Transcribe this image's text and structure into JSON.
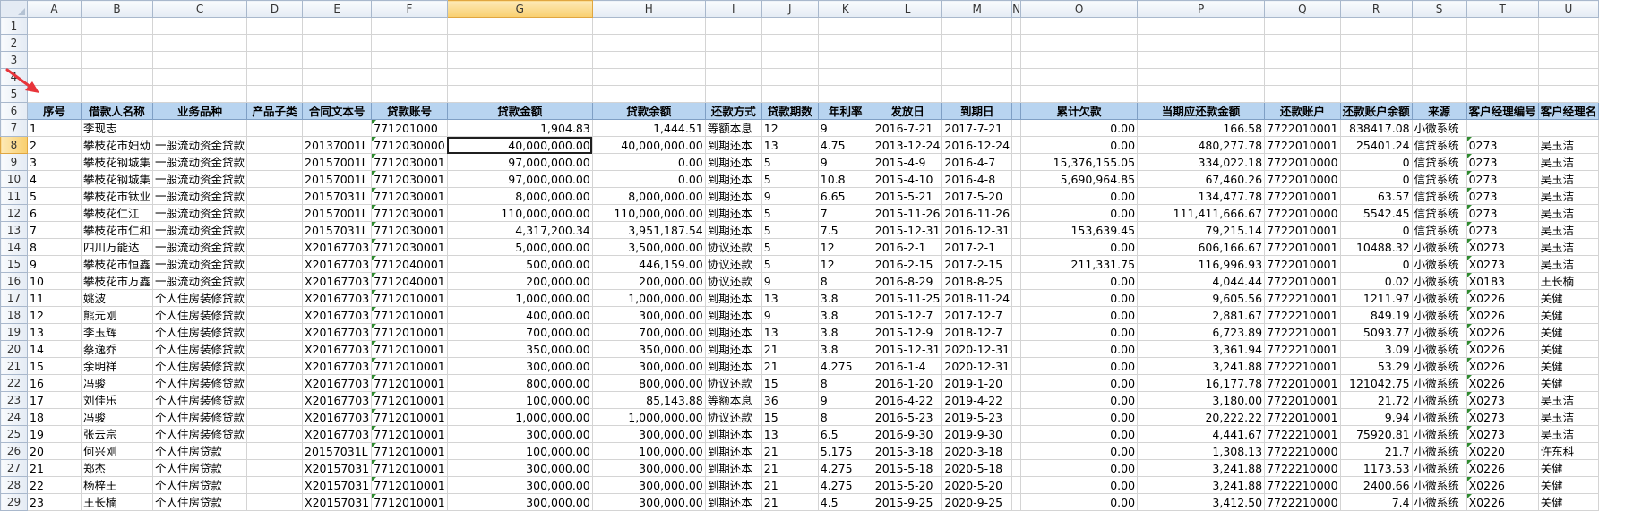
{
  "columns": [
    "A",
    "B",
    "C",
    "D",
    "E",
    "F",
    "G",
    "H",
    "I",
    "J",
    "K",
    "L",
    "M",
    "N",
    "O",
    "P",
    "Q",
    "R",
    "S",
    "T",
    "U"
  ],
  "selected_column": "G",
  "selected_row": "8",
  "blank_rows": [
    "1",
    "2",
    "3",
    "4",
    "5"
  ],
  "header_row": {
    "row": "6",
    "cells": [
      "序号",
      "借款人名称",
      "业务品种",
      "产品子类",
      "合同文本号",
      "贷款账号",
      "贷款金额",
      "贷款余额",
      "还款方式",
      "贷款期数",
      "年利率",
      "发放日",
      "到期日",
      "",
      "累计欠款",
      "当期应还款金额",
      "还款账户",
      "还款账户余额",
      "来源",
      "客户经理编号",
      "客户经理名"
    ]
  },
  "records": [
    {
      "row": "7",
      "cells": [
        "1",
        "李现志",
        "",
        "",
        "",
        "771201000",
        "1,904.83",
        "1,444.51",
        "等额本息",
        "12",
        "9",
        "2016-7-21",
        "2017-7-21",
        "",
        "0.00",
        "166.58",
        "7722010001",
        "838417.08",
        "小微系统",
        "",
        ""
      ]
    },
    {
      "row": "8",
      "cells": [
        "2",
        "攀枝花市妇幼",
        "一般流动资金贷款",
        "",
        "20137001L",
        "7712030000",
        "40,000,000.00",
        "40,000,000.00",
        "到期还本",
        "13",
        "4.75",
        "2013-12-24",
        "2016-12-24",
        "",
        "0.00",
        "480,277.78",
        "7722010001",
        "25401.24",
        "信贷系统",
        "0273",
        "吴玉洁"
      ]
    },
    {
      "row": "9",
      "cells": [
        "3",
        "攀枝花钢城集",
        "一般流动资金贷款",
        "",
        "20157001L",
        "7712030001",
        "97,000,000.00",
        "0.00",
        "到期还本",
        "5",
        "9",
        "2015-4-9",
        "2016-4-7",
        "",
        "15,376,155.05",
        "334,022.18",
        "7722010000",
        "0",
        "信贷系统",
        "0273",
        "吴玉洁"
      ]
    },
    {
      "row": "10",
      "cells": [
        "4",
        "攀枝花钢城集",
        "一般流动资金贷款",
        "",
        "20157001L",
        "7712030001",
        "97,000,000.00",
        "0.00",
        "到期还本",
        "5",
        "10.8",
        "2015-4-10",
        "2016-4-8",
        "",
        "5,690,964.85",
        "67,460.26",
        "7722010000",
        "0",
        "信贷系统",
        "0273",
        "吴玉洁"
      ]
    },
    {
      "row": "11",
      "cells": [
        "5",
        "攀枝花市钛业",
        "一般流动资金贷款",
        "",
        "20157031L",
        "7712030001",
        "8,000,000.00",
        "8,000,000.00",
        "到期还本",
        "9",
        "6.65",
        "2015-5-21",
        "2017-5-20",
        "",
        "0.00",
        "134,477.78",
        "7722010001",
        "63.57",
        "信贷系统",
        "0273",
        "吴玉洁"
      ]
    },
    {
      "row": "12",
      "cells": [
        "6",
        "攀枝花仁江",
        "一般流动资金贷款",
        "",
        "20157001L",
        "7712030001",
        "110,000,000.00",
        "110,000,000.00",
        "到期还本",
        "5",
        "7",
        "2015-11-26",
        "2016-11-26",
        "",
        "0.00",
        "111,411,666.67",
        "7722010000",
        "5542.45",
        "信贷系统",
        "0273",
        "吴玉洁"
      ]
    },
    {
      "row": "13",
      "cells": [
        "7",
        "攀枝花市仁和",
        "一般流动资金贷款",
        "",
        "20157031L",
        "7712030001",
        "4,317,200.34",
        "3,951,187.54",
        "到期还本",
        "5",
        "7.5",
        "2015-12-31",
        "2016-12-31",
        "",
        "153,639.45",
        "79,215.14",
        "7722010001",
        "0",
        "信贷系统",
        "0273",
        "吴玉洁"
      ]
    },
    {
      "row": "14",
      "cells": [
        "8",
        "四川万能达",
        "一般流动资金贷款",
        "",
        "X20167703",
        "7712030001",
        "5,000,000.00",
        "3,500,000.00",
        "协议还款",
        "5",
        "12",
        "2016-2-1",
        "2017-2-1",
        "",
        "0.00",
        "606,166.67",
        "7722010001",
        "10488.32",
        "小微系统",
        "X0273",
        "吴玉洁"
      ]
    },
    {
      "row": "15",
      "cells": [
        "9",
        "攀枝花市恒鑫",
        "一般流动资金贷款",
        "",
        "X20167703",
        "7712040001",
        "500,000.00",
        "446,159.00",
        "协议还款",
        "5",
        "12",
        "2016-2-15",
        "2017-2-15",
        "",
        "211,331.75",
        "116,996.93",
        "7722010001",
        "0",
        "小微系统",
        "X0273",
        "吴玉洁"
      ]
    },
    {
      "row": "16",
      "cells": [
        "10",
        "攀枝花市万鑫",
        "一般流动资金贷款",
        "",
        "X20167703",
        "7712040001",
        "200,000.00",
        "200,000.00",
        "协议还款",
        "9",
        "8",
        "2016-8-29",
        "2018-8-25",
        "",
        "0.00",
        "4,044.44",
        "7722010001",
        "0.02",
        "小微系统",
        "X0183",
        "王长楠"
      ]
    },
    {
      "row": "17",
      "cells": [
        "11",
        "姚波",
        "个人住房装修贷款",
        "",
        "X20167703",
        "7712010001",
        "1,000,000.00",
        "1,000,000.00",
        "到期还本",
        "13",
        "3.8",
        "2015-11-25",
        "2018-11-24",
        "",
        "0.00",
        "9,605.56",
        "7722210001",
        "1211.97",
        "小微系统",
        "X0226",
        "关健"
      ]
    },
    {
      "row": "18",
      "cells": [
        "12",
        "熊元刚",
        "个人住房装修贷款",
        "",
        "X20167703",
        "7712010001",
        "400,000.00",
        "300,000.00",
        "到期还本",
        "9",
        "3.8",
        "2015-12-7",
        "2017-12-7",
        "",
        "0.00",
        "2,881.67",
        "7722210001",
        "849.19",
        "小微系统",
        "X0226",
        "关健"
      ]
    },
    {
      "row": "19",
      "cells": [
        "13",
        "李玉辉",
        "个人住房装修贷款",
        "",
        "X20167703",
        "7712010001",
        "700,000.00",
        "700,000.00",
        "到期还本",
        "13",
        "3.8",
        "2015-12-9",
        "2018-12-7",
        "",
        "0.00",
        "6,723.89",
        "7722210001",
        "5093.77",
        "小微系统",
        "X0226",
        "关健"
      ]
    },
    {
      "row": "20",
      "cells": [
        "14",
        "蔡逸乔",
        "个人住房装修贷款",
        "",
        "X20167703",
        "7712010001",
        "350,000.00",
        "350,000.00",
        "到期还本",
        "21",
        "3.8",
        "2015-12-31",
        "2020-12-31",
        "",
        "0.00",
        "3,361.94",
        "7722210001",
        "3.09",
        "小微系统",
        "X0226",
        "关健"
      ]
    },
    {
      "row": "21",
      "cells": [
        "15",
        "余明祥",
        "个人住房装修贷款",
        "",
        "X20167703",
        "7712010001",
        "300,000.00",
        "300,000.00",
        "到期还本",
        "21",
        "4.275",
        "2016-1-4",
        "2020-12-31",
        "",
        "0.00",
        "3,241.88",
        "7722210001",
        "53.29",
        "小微系统",
        "X0226",
        "关健"
      ]
    },
    {
      "row": "22",
      "cells": [
        "16",
        "冯骏",
        "个人住房装修贷款",
        "",
        "X20167703",
        "7712010001",
        "800,000.00",
        "800,000.00",
        "协议还款",
        "15",
        "8",
        "2016-1-20",
        "2019-1-20",
        "",
        "0.00",
        "16,177.78",
        "7722010001",
        "121042.75",
        "小微系统",
        "X0226",
        "关健"
      ]
    },
    {
      "row": "23",
      "cells": [
        "17",
        "刘佳乐",
        "个人住房装修贷款",
        "",
        "X20167703",
        "7712010001",
        "100,000.00",
        "85,143.88",
        "等额本息",
        "36",
        "9",
        "2016-4-22",
        "2019-4-22",
        "",
        "0.00",
        "3,180.00",
        "7722010001",
        "21.72",
        "小微系统",
        "X0273",
        "吴玉洁"
      ]
    },
    {
      "row": "24",
      "cells": [
        "18",
        "冯骏",
        "个人住房装修贷款",
        "",
        "X20167703",
        "7712010001",
        "1,000,000.00",
        "1,000,000.00",
        "协议还款",
        "15",
        "8",
        "2016-5-23",
        "2019-5-23",
        "",
        "0.00",
        "20,222.22",
        "7722010001",
        "9.94",
        "小微系统",
        "X0273",
        "吴玉洁"
      ]
    },
    {
      "row": "25",
      "cells": [
        "19",
        "张云宗",
        "个人住房装修贷款",
        "",
        "X20167703",
        "7712010001",
        "300,000.00",
        "300,000.00",
        "到期还本",
        "13",
        "6.5",
        "2016-9-30",
        "2019-9-30",
        "",
        "0.00",
        "4,441.67",
        "7722210001",
        "75920.81",
        "小微系统",
        "X0273",
        "吴玉洁"
      ]
    },
    {
      "row": "26",
      "cells": [
        "20",
        "何兴刚",
        "个人住房贷款",
        "",
        "20157031L",
        "7712010001",
        "100,000.00",
        "100,000.00",
        "到期还本",
        "21",
        "5.175",
        "2015-3-18",
        "2020-3-18",
        "",
        "0.00",
        "1,308.13",
        "7722210000",
        "21.7",
        "小微系统",
        "X0220",
        "许东科"
      ]
    },
    {
      "row": "27",
      "cells": [
        "21",
        "郑杰",
        "个人住房贷款",
        "",
        "X20157031",
        "7712010001",
        "300,000.00",
        "300,000.00",
        "到期还本",
        "21",
        "4.275",
        "2015-5-18",
        "2020-5-18",
        "",
        "0.00",
        "3,241.88",
        "7722210000",
        "1173.53",
        "小微系统",
        "X0226",
        "关健"
      ]
    },
    {
      "row": "28",
      "cells": [
        "22",
        "杨梓王",
        "个人住房贷款",
        "",
        "X20157031",
        "7712010001",
        "300,000.00",
        "300,000.00",
        "到期还本",
        "21",
        "4.275",
        "2015-5-20",
        "2020-5-20",
        "",
        "0.00",
        "3,241.88",
        "7722210000",
        "2400.66",
        "小微系统",
        "X0226",
        "关健"
      ]
    },
    {
      "row": "29",
      "cells": [
        "23",
        "王长楠",
        "个人住房贷款",
        "",
        "X20157031",
        "7712010001",
        "300,000.00",
        "300,000.00",
        "到期还本",
        "21",
        "4.5",
        "2015-9-25",
        "2020-9-25",
        "",
        "0.00",
        "3,412.50",
        "7722210000",
        "7.4",
        "小微系统",
        "X0226",
        "关健"
      ]
    }
  ],
  "accent_colors": {
    "header_fill": "#b8d4f0",
    "selected_header": "#f9cf6e",
    "arrow": "#e8343a",
    "error_triangle": "#2e8b2e"
  }
}
